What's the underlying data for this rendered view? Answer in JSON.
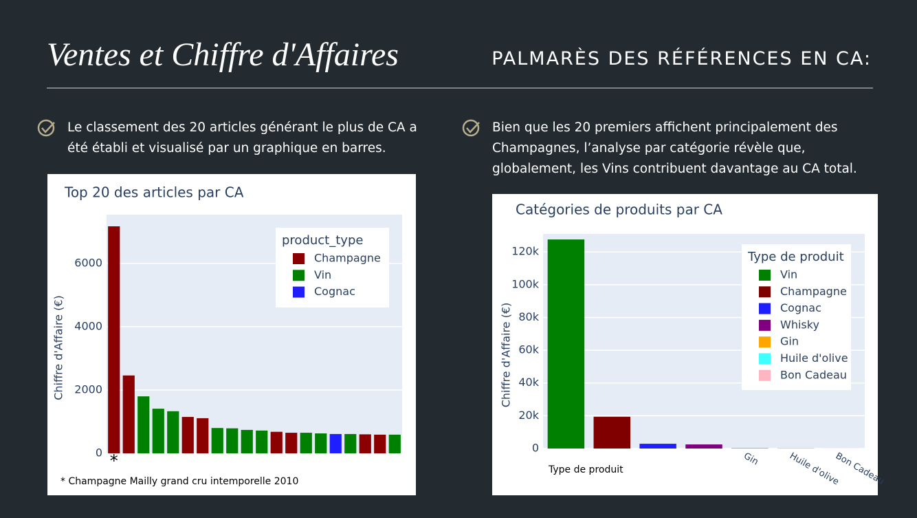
{
  "header": {
    "title": "Ventes et Chiffre d'Affaires",
    "subtitle": "PALMARÈS DES RÉFÉRENCES EN CA:"
  },
  "bullets": [
    "Le classement des 20 articles générant le plus de CA a été établi et visualisé par un graphique en barres.",
    "Bien que les 20 premiers affichent principalement des Champagnes, l’analyse par catégorie révèle que, globalement, les Vins contribuent davantage au CA total."
  ],
  "chart_data": [
    {
      "type": "bar",
      "title": "Top 20 des articles par CA",
      "y_label": "Chiffre d'Affaire (€)",
      "legend_title": "product_type",
      "footnote": "* Champagne Mailly grand cru intemporelle 2010",
      "categories": [
        "*",
        null,
        null,
        null,
        null,
        null,
        null,
        null,
        null,
        null,
        null,
        null,
        null,
        null,
        null,
        null,
        null,
        null,
        null,
        null
      ],
      "series": [
        {
          "name": "Champagne",
          "color": "#8b0000",
          "values": [
            7170,
            2460,
            null,
            null,
            null,
            1150,
            1110,
            null,
            null,
            null,
            null,
            680,
            650,
            null,
            null,
            null,
            null,
            600,
            590,
            null
          ]
        },
        {
          "name": "Vin",
          "color": "#008000",
          "values": [
            null,
            null,
            1800,
            1410,
            1330,
            null,
            null,
            800,
            790,
            740,
            720,
            null,
            null,
            650,
            630,
            null,
            610,
            null,
            null,
            590
          ]
        },
        {
          "name": "Cognac",
          "color": "#1e1eff",
          "values": [
            null,
            null,
            null,
            null,
            null,
            null,
            null,
            null,
            null,
            null,
            null,
            null,
            null,
            null,
            null,
            610,
            null,
            null,
            null,
            null
          ]
        }
      ],
      "ylim": [
        0,
        7540
      ],
      "yticks": [
        0,
        2000,
        4000,
        6000
      ],
      "grid": true
    },
    {
      "type": "bar",
      "title": "Catégories de produits par CA",
      "y_label": "Chiffre d'Affaire (€)",
      "x_label": "Type de produit",
      "legend_title": "Type de produit",
      "categories": [
        null,
        null,
        null,
        null,
        "Gin",
        "Huile d'olive",
        "Bon Cadeau"
      ],
      "series": [
        {
          "name": "Vin",
          "color": "#008000",
          "values": [
            127600,
            null,
            null,
            null,
            null,
            null,
            null
          ]
        },
        {
          "name": "Champagne",
          "color": "#800000",
          "values": [
            null,
            19400,
            null,
            null,
            null,
            null,
            null
          ]
        },
        {
          "name": "Cognac",
          "color": "#1e1eff",
          "values": [
            null,
            null,
            2900,
            null,
            null,
            null,
            null
          ]
        },
        {
          "name": "Whisky",
          "color": "#800080",
          "values": [
            null,
            null,
            null,
            2500,
            null,
            null,
            null
          ]
        },
        {
          "name": "Gin",
          "color": "#ffa500",
          "values": [
            null,
            null,
            null,
            null,
            400,
            null,
            null
          ]
        },
        {
          "name": "Huile d'olive",
          "color": "#40ffff",
          "values": [
            null,
            null,
            null,
            null,
            null,
            300,
            null
          ]
        },
        {
          "name": "Bon Cadeau",
          "color": "#ffb6c1",
          "values": [
            null,
            null,
            null,
            null,
            null,
            null,
            50
          ]
        }
      ],
      "ylim": [
        0,
        131000
      ],
      "yticks": [
        0,
        {
          "value": 20000,
          "label": "20k"
        },
        {
          "value": 40000,
          "label": "40k"
        },
        {
          "value": 60000,
          "label": "60k"
        },
        {
          "value": 80000,
          "label": "80k"
        },
        {
          "value": 100000,
          "label": "100k"
        },
        {
          "value": 120000,
          "label": "120k"
        }
      ],
      "grid": true
    }
  ]
}
